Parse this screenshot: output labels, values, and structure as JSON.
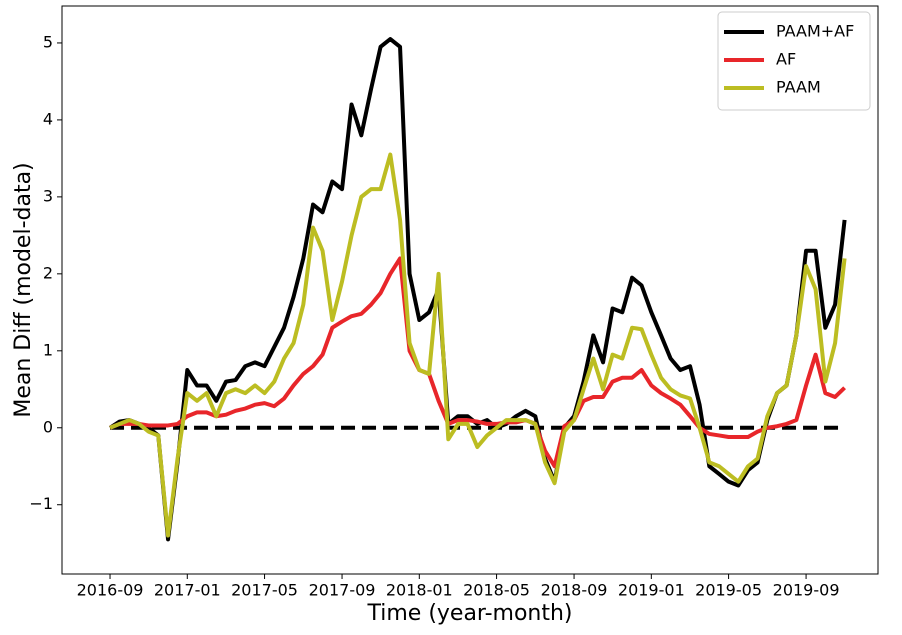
{
  "chart_data": {
    "type": "line",
    "xlabel": "Time (year-month)",
    "ylabel": "Mean Diff (model-data)",
    "x": [
      2016.667,
      2016.708,
      2016.75,
      2016.792,
      2016.833,
      2016.875,
      2016.917,
      2016.958,
      2017.0,
      2017.042,
      2017.083,
      2017.125,
      2017.167,
      2017.208,
      2017.25,
      2017.292,
      2017.333,
      2017.375,
      2017.417,
      2017.458,
      2017.5,
      2017.542,
      2017.583,
      2017.625,
      2017.667,
      2017.708,
      2017.75,
      2017.792,
      2017.833,
      2017.875,
      2017.917,
      2017.958,
      2018.0,
      2018.042,
      2018.083,
      2018.125,
      2018.167,
      2018.208,
      2018.25,
      2018.292,
      2018.333,
      2018.375,
      2018.417,
      2018.458,
      2018.5,
      2018.542,
      2018.583,
      2018.625,
      2018.667,
      2018.708,
      2018.75,
      2018.792,
      2018.833,
      2018.875,
      2018.917,
      2018.958,
      2019.0,
      2019.042,
      2019.083,
      2019.125,
      2019.167,
      2019.208,
      2019.25,
      2019.292,
      2019.333,
      2019.375,
      2019.417,
      2019.458,
      2019.5,
      2019.542,
      2019.583,
      2019.625,
      2019.667,
      2019.708,
      2019.75,
      2019.792,
      2019.833
    ],
    "series": [
      {
        "name": "PAAM+AF",
        "color": "#000000",
        "values": [
          0.0,
          0.08,
          0.1,
          0.05,
          0.0,
          -0.1,
          -1.45,
          -0.45,
          0.75,
          0.55,
          0.55,
          0.35,
          0.6,
          0.62,
          0.8,
          0.85,
          0.8,
          1.05,
          1.3,
          1.7,
          2.2,
          2.9,
          2.8,
          3.2,
          3.1,
          4.2,
          3.8,
          4.4,
          4.95,
          5.05,
          4.95,
          2.0,
          1.4,
          1.5,
          1.8,
          0.05,
          0.15,
          0.15,
          0.05,
          0.1,
          0.0,
          0.05,
          0.15,
          0.22,
          0.15,
          -0.4,
          -0.7,
          0.0,
          0.15,
          0.6,
          1.2,
          0.85,
          1.55,
          1.5,
          1.95,
          1.85,
          1.5,
          1.2,
          0.9,
          0.75,
          0.8,
          0.3,
          -0.5,
          -0.6,
          -0.7,
          -0.75,
          -0.55,
          -0.45,
          0.1,
          0.45,
          0.55,
          1.2,
          2.3,
          2.3,
          1.3,
          1.6,
          2.7
        ]
      },
      {
        "name": "AF",
        "color": "#e8262a",
        "values": [
          0.0,
          0.05,
          0.05,
          0.05,
          0.03,
          0.03,
          0.03,
          0.05,
          0.15,
          0.2,
          0.2,
          0.15,
          0.17,
          0.22,
          0.25,
          0.3,
          0.32,
          0.28,
          0.38,
          0.55,
          0.7,
          0.8,
          0.95,
          1.3,
          1.38,
          1.45,
          1.48,
          1.6,
          1.75,
          2.0,
          2.2,
          1.0,
          0.75,
          0.7,
          0.35,
          0.05,
          0.1,
          0.1,
          0.08,
          0.05,
          0.05,
          0.07,
          0.07,
          0.1,
          0.05,
          -0.3,
          -0.5,
          0.02,
          0.1,
          0.35,
          0.4,
          0.4,
          0.6,
          0.65,
          0.65,
          0.75,
          0.55,
          0.45,
          0.38,
          0.3,
          0.15,
          0.0,
          -0.08,
          -0.1,
          -0.12,
          -0.12,
          -0.12,
          -0.05,
          0.0,
          0.02,
          0.05,
          0.1,
          0.55,
          0.95,
          0.45,
          0.4,
          0.52
        ]
      },
      {
        "name": "PAAM",
        "color": "#bcbd22",
        "values": [
          0.0,
          0.05,
          0.1,
          0.05,
          -0.05,
          -0.1,
          -1.4,
          -0.4,
          0.45,
          0.35,
          0.45,
          0.15,
          0.45,
          0.5,
          0.45,
          0.55,
          0.45,
          0.6,
          0.9,
          1.1,
          1.6,
          2.6,
          2.3,
          1.4,
          1.9,
          2.5,
          3.0,
          3.1,
          3.1,
          3.55,
          2.7,
          1.1,
          0.75,
          0.7,
          2.0,
          -0.15,
          0.05,
          0.05,
          -0.25,
          -0.1,
          0.0,
          0.1,
          0.1,
          0.1,
          0.05,
          -0.45,
          -0.72,
          -0.05,
          0.1,
          0.5,
          0.9,
          0.5,
          0.95,
          0.9,
          1.3,
          1.28,
          0.95,
          0.65,
          0.5,
          0.42,
          0.38,
          0.0,
          -0.45,
          -0.5,
          -0.6,
          -0.7,
          -0.5,
          -0.4,
          0.15,
          0.45,
          0.55,
          1.2,
          2.1,
          1.8,
          0.6,
          1.1,
          2.2
        ]
      }
    ],
    "hline": 0,
    "xlim": [
      2016.46,
      2019.977
    ],
    "ylim": [
      -1.9,
      5.48
    ],
    "xticks": [
      {
        "value": 2016.667,
        "label": "2016-09"
      },
      {
        "value": 2017.0,
        "label": "2017-01"
      },
      {
        "value": 2017.333,
        "label": "2017-05"
      },
      {
        "value": 2017.667,
        "label": "2017-09"
      },
      {
        "value": 2018.0,
        "label": "2018-01"
      },
      {
        "value": 2018.333,
        "label": "2018-05"
      },
      {
        "value": 2018.667,
        "label": "2018-09"
      },
      {
        "value": 2019.0,
        "label": "2019-01"
      },
      {
        "value": 2019.333,
        "label": "2019-05"
      },
      {
        "value": 2019.667,
        "label": "2019-09"
      }
    ],
    "yticks": [
      {
        "value": -1,
        "label": "−1"
      },
      0,
      1,
      2,
      3,
      4,
      5
    ],
    "legend": "upper right",
    "grid": false
  }
}
